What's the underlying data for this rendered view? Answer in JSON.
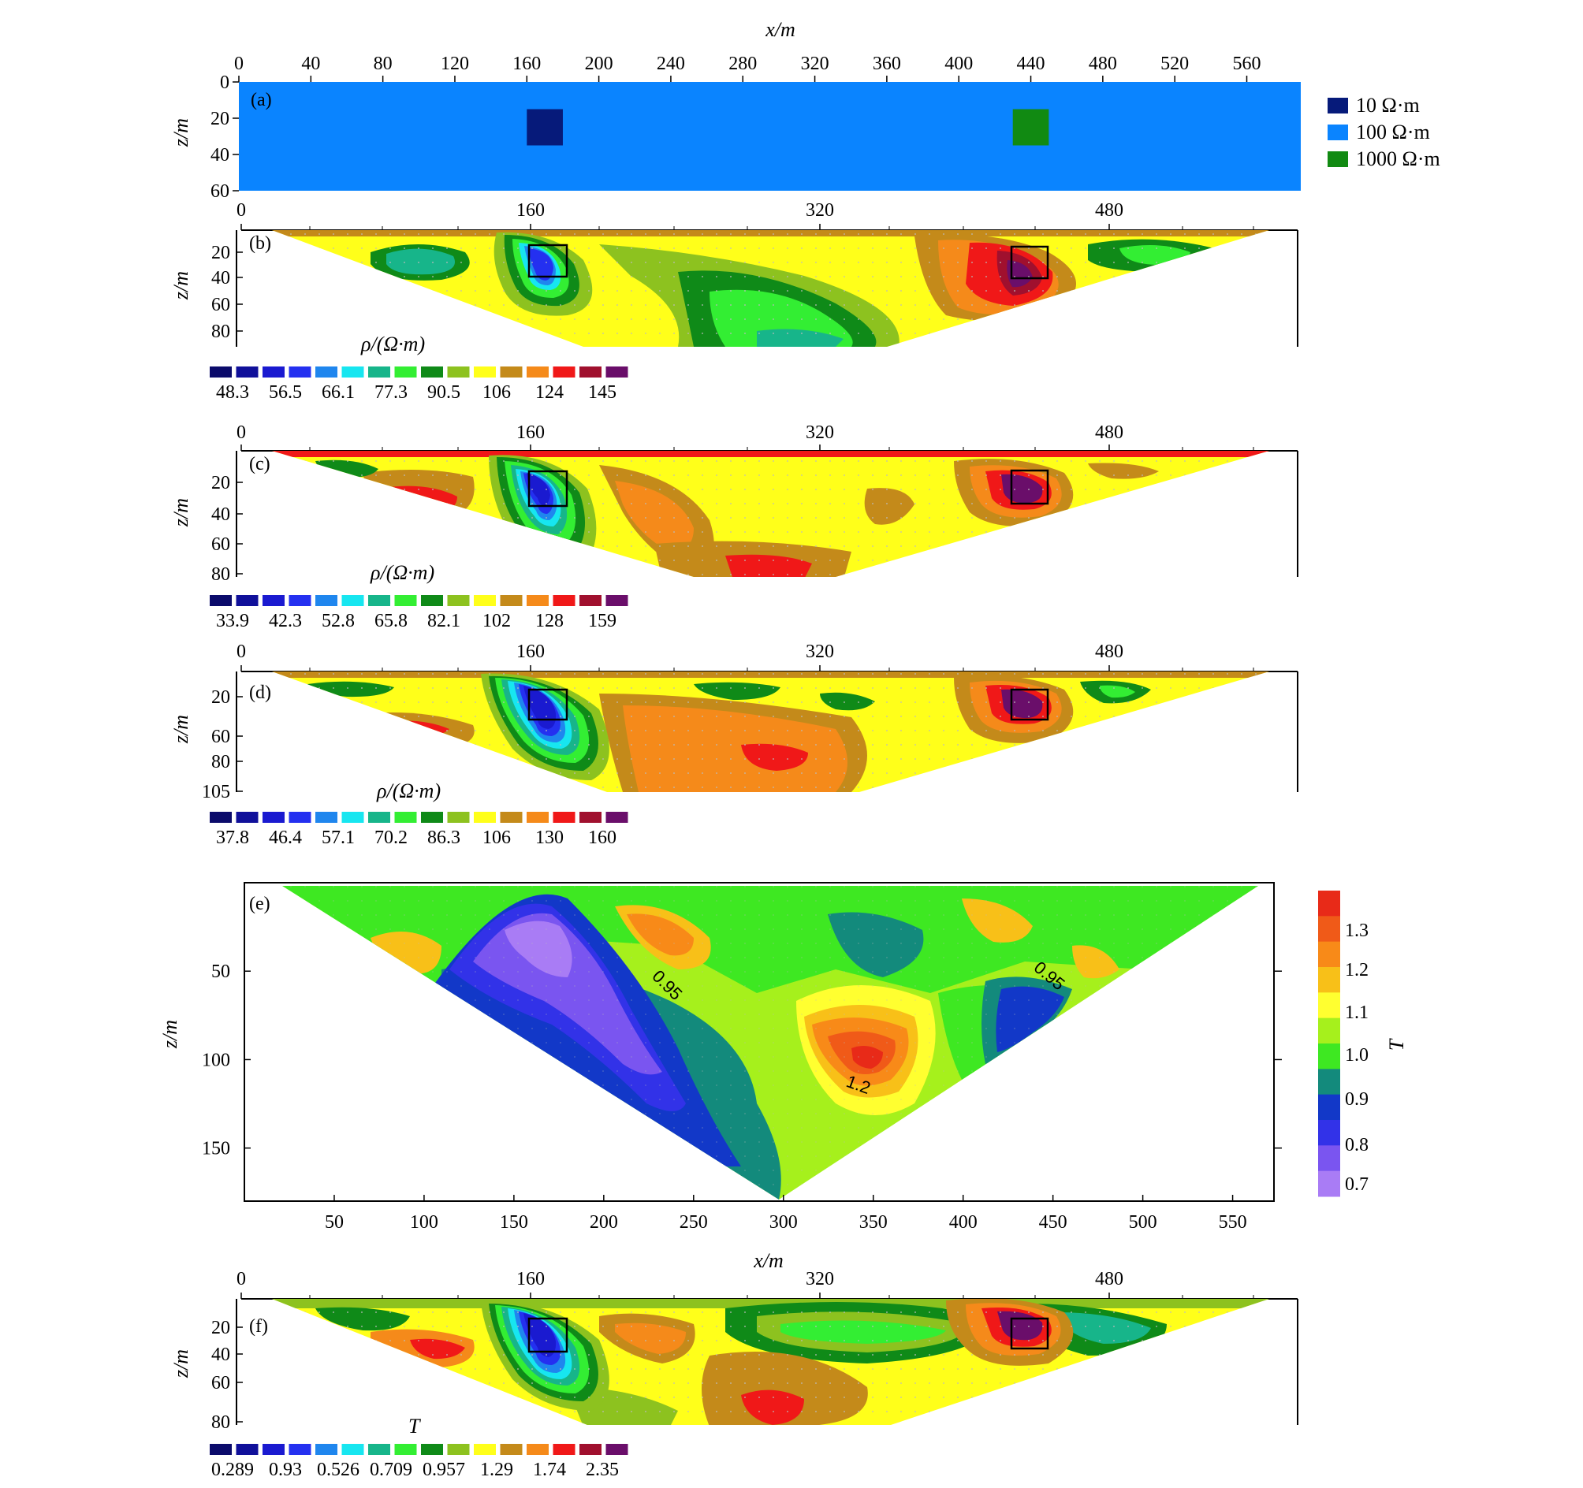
{
  "chart_data": [
    {
      "id": "a",
      "panel_label": "(a)",
      "type": "heatmap",
      "xlabel": "x/m",
      "ylabel": "z/m",
      "x_ticks": [
        "0",
        "40",
        "80",
        "120",
        "160",
        "200",
        "240",
        "280",
        "320",
        "360",
        "400",
        "440",
        "480",
        "520",
        "560"
      ],
      "z_ticks": [
        "0",
        "20",
        "40",
        "60"
      ],
      "xlim": [
        0,
        590
      ],
      "zlim": [
        0,
        60
      ],
      "background": {
        "resistivity": "100 Ω·m",
        "color": "#0a84ff"
      },
      "blocks": [
        {
          "label": "10 Ω·m",
          "x": [
            160,
            180
          ],
          "z": [
            15,
            35
          ],
          "color": "#061a7a"
        },
        {
          "label": "1000 Ω·m",
          "x": [
            430,
            450
          ],
          "z": [
            15,
            35
          ],
          "color": "#118a12"
        }
      ],
      "legend": [
        {
          "label": "10 Ω·m",
          "color": "#061a7a"
        },
        {
          "label": "100 Ω·m",
          "color": "#0a84ff"
        },
        {
          "label": "1000 Ω·m",
          "color": "#118a12"
        }
      ]
    },
    {
      "id": "b",
      "panel_label": "(b)",
      "type": "heatmap",
      "ylabel": "z/m",
      "x_ticks": [
        "0",
        "160",
        "320",
        "480"
      ],
      "z_ticks": [
        "20",
        "40",
        "60",
        "80"
      ],
      "colorbar_title": "ρ/(Ω·m)",
      "colorbar_labels": [
        "48.3",
        "56.5",
        "66.1",
        "77.3",
        "90.5",
        "106",
        "124",
        "145"
      ]
    },
    {
      "id": "c",
      "panel_label": "(c)",
      "type": "heatmap",
      "ylabel": "z/m",
      "x_ticks": [
        "0",
        "160",
        "320",
        "480"
      ],
      "z_ticks": [
        "20",
        "40",
        "60",
        "80"
      ],
      "colorbar_title": "ρ/(Ω·m)",
      "colorbar_labels": [
        "33.9",
        "42.3",
        "52.8",
        "65.8",
        "82.1",
        "102",
        "128",
        "159"
      ]
    },
    {
      "id": "d",
      "panel_label": "(d)",
      "type": "heatmap",
      "ylabel": "z/m",
      "x_ticks": [
        "0",
        "160",
        "320",
        "480"
      ],
      "z_ticks": [
        "20",
        "60",
        "80",
        "105"
      ],
      "colorbar_title": "ρ/(Ω·m)",
      "colorbar_labels": [
        "37.8",
        "46.4",
        "57.1",
        "70.2",
        "86.3",
        "106",
        "130",
        "160"
      ]
    },
    {
      "id": "e",
      "panel_label": "(e)",
      "type": "heatmap",
      "xlabel": "x/m",
      "ylabel": "z/m",
      "x_ticks": [
        "50",
        "100",
        "150",
        "200",
        "250",
        "300",
        "350",
        "400",
        "450",
        "500",
        "550"
      ],
      "z_ticks": [
        "50",
        "100",
        "150"
      ],
      "colorbar_title": "T",
      "colorbar_labels": [
        "1.3",
        "1.2",
        "1.1",
        "1.0",
        "0.9",
        "0.8",
        "0.7"
      ],
      "contour_labels": [
        "0.95",
        "0.95",
        "1.2"
      ]
    },
    {
      "id": "f",
      "panel_label": "(f)",
      "type": "heatmap",
      "ylabel": "z/m",
      "x_ticks": [
        "0",
        "160",
        "320",
        "480"
      ],
      "z_ticks": [
        "20",
        "40",
        "60",
        "80"
      ],
      "colorbar_title": "T",
      "colorbar_labels": [
        "0.289",
        "0.93",
        "0.526",
        "0.709",
        "0.957",
        "1.29",
        "1.74",
        "2.35"
      ]
    }
  ],
  "colors": {
    "rho_scale": [
      "#0b0b6b",
      "#10109a",
      "#1a1ad0",
      "#2430f0",
      "#1f86ee",
      "#17e6f0",
      "#17b58a",
      "#33ee33",
      "#0f8a18",
      "#8dc21f",
      "#ffff1a",
      "#c48a1a",
      "#f58a1a",
      "#f01818",
      "#a0102e",
      "#6a0e6a"
    ],
    "t_scale": [
      "#a97cf5",
      "#7a55f0",
      "#3232e8",
      "#1238c8",
      "#138a7c",
      "#3ee822",
      "#a6f01c",
      "#ffff30",
      "#f8c018",
      "#f88a18",
      "#f05a18",
      "#e82a18"
    ]
  }
}
